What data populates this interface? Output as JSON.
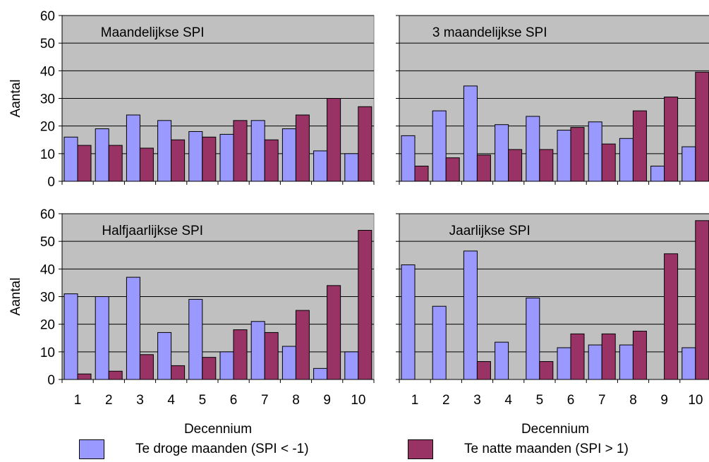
{
  "colors": {
    "droog": "#9999ff",
    "nat": "#993366",
    "plot_bg": "#c0c0c0"
  },
  "chart_data": [
    {
      "type": "bar",
      "title": "Maandelijkse SPI",
      "xlabel": "",
      "ylabel": "Aantal",
      "categories": [
        "1",
        "2",
        "3",
        "4",
        "5",
        "6",
        "7",
        "8",
        "9",
        "10"
      ],
      "ylim": [
        0,
        60
      ],
      "yticks": [
        "0",
        "10",
        "20",
        "30",
        "40",
        "50",
        "60"
      ],
      "show_xticklabels": false,
      "show_yticklabels": true,
      "grid": true,
      "series": [
        {
          "name": "Te droge maanden (SPI < -1)",
          "values": [
            16,
            19,
            24,
            22,
            18,
            17,
            22,
            19,
            11,
            10
          ]
        },
        {
          "name": "Te natte maanden (SPI > 1)",
          "values": [
            13,
            13,
            12,
            15,
            16,
            22,
            15,
            24,
            30,
            27
          ]
        }
      ]
    },
    {
      "type": "bar",
      "title": "3 maandelijkse SPI",
      "xlabel": "",
      "ylabel": "",
      "categories": [
        "1",
        "2",
        "3",
        "4",
        "5",
        "6",
        "7",
        "8",
        "9",
        "10"
      ],
      "ylim": [
        0,
        60
      ],
      "show_xticklabels": false,
      "show_yticklabels": false,
      "grid": true,
      "series": [
        {
          "name": "Te droge maanden (SPI < -1)",
          "values": [
            16.5,
            25.5,
            34.5,
            20.5,
            23.5,
            18.5,
            21.5,
            15.5,
            5.5,
            12.5
          ]
        },
        {
          "name": "Te natte maanden (SPI > 1)",
          "values": [
            5.5,
            8.5,
            9.5,
            11.5,
            11.5,
            19.5,
            13.5,
            25.5,
            30.5,
            39.5
          ]
        }
      ]
    },
    {
      "type": "bar",
      "title": "Halfjaarlijkse SPI",
      "xlabel": "Decennium",
      "ylabel": "Aantal",
      "categories": [
        "1",
        "2",
        "3",
        "4",
        "5",
        "6",
        "7",
        "8",
        "9",
        "10"
      ],
      "ylim": [
        0,
        60
      ],
      "yticks": [
        "0",
        "10",
        "20",
        "30",
        "40",
        "50",
        "60"
      ],
      "show_xticklabels": true,
      "show_yticklabels": true,
      "grid": true,
      "series": [
        {
          "name": "Te droge maanden (SPI < -1)",
          "values": [
            31,
            30,
            37,
            17,
            29,
            10,
            21,
            12,
            4,
            10
          ]
        },
        {
          "name": "Te natte maanden (SPI > 1)",
          "values": [
            2,
            3,
            9,
            5,
            8,
            18,
            17,
            25,
            34,
            54
          ]
        }
      ]
    },
    {
      "type": "bar",
      "title": "Jaarlijkse SPI",
      "xlabel": "Decennium",
      "ylabel": "",
      "categories": [
        "1",
        "2",
        "3",
        "4",
        "5",
        "6",
        "7",
        "8",
        "9",
        "10"
      ],
      "ylim": [
        0,
        60
      ],
      "show_xticklabels": true,
      "show_yticklabels": false,
      "grid": true,
      "series": [
        {
          "name": "Te droge maanden (SPI < -1)",
          "values": [
            41.5,
            26.5,
            46.5,
            13.5,
            29.5,
            11.5,
            12.5,
            12.5,
            0,
            11.5
          ]
        },
        {
          "name": "Te natte maanden (SPI > 1)",
          "values": [
            0,
            0,
            6.5,
            0,
            6.5,
            16.5,
            16.5,
            17.5,
            45.5,
            57.5
          ]
        }
      ]
    }
  ],
  "legend": {
    "droog_label": "Te droge maanden (SPI < -1)",
    "nat_label": "Te natte maanden (SPI > 1)"
  }
}
